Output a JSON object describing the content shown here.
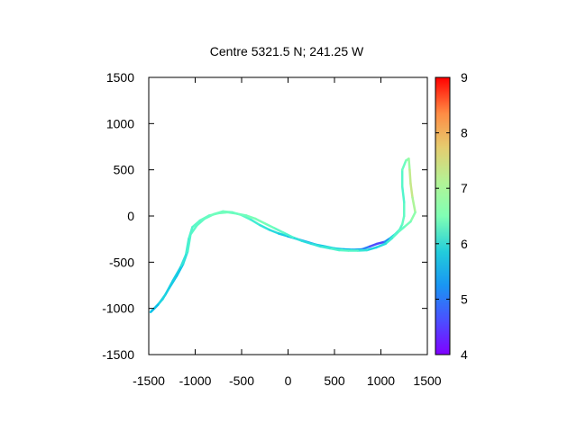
{
  "chart_data": {
    "type": "line",
    "title": "Centre 5321.5 N; 241.25  W",
    "xlabel": "",
    "ylabel": "",
    "xlim": [
      -1500,
      1500
    ],
    "ylim": [
      -1500,
      1500
    ],
    "x_ticks": [
      -1500,
      -1000,
      -500,
      0,
      500,
      1000,
      1500
    ],
    "y_ticks": [
      -1500,
      -1000,
      -500,
      0,
      500,
      1000,
      1500
    ],
    "x_tick_labels": [
      "-1500",
      "-1000",
      "-500",
      "0",
      "500",
      "1000",
      "1500"
    ],
    "y_tick_labels": [
      "-1500",
      "-1000",
      "-500",
      "0",
      "500",
      "1000",
      "1500"
    ],
    "grid": false,
    "colorbar": {
      "range": [
        4,
        9
      ],
      "ticks": [
        4,
        5,
        6,
        7,
        8,
        9
      ],
      "tick_labels": [
        "4",
        "5",
        "6",
        "7",
        "8",
        "9"
      ],
      "colormap": "rainbow"
    },
    "series": [
      {
        "points": [
          {
            "x": -1480,
            "y": -1040,
            "c": 5.3
          },
          {
            "x": -1420,
            "y": -980,
            "c": 5.6
          },
          {
            "x": -1350,
            "y": -900,
            "c": 5.8
          },
          {
            "x": -1280,
            "y": -780,
            "c": 5.5
          },
          {
            "x": -1200,
            "y": -650,
            "c": 5.2
          },
          {
            "x": -1130,
            "y": -520,
            "c": 5.4
          },
          {
            "x": -1080,
            "y": -380,
            "c": 5.9
          },
          {
            "x": -1050,
            "y": -200,
            "c": 6.2
          },
          {
            "x": -980,
            "y": -100,
            "c": 6.1
          },
          {
            "x": -900,
            "y": -30,
            "c": 6.3
          },
          {
            "x": -800,
            "y": 20,
            "c": 6.2
          },
          {
            "x": -700,
            "y": 50,
            "c": 6.4
          },
          {
            "x": -600,
            "y": 40,
            "c": 6.3
          },
          {
            "x": -500,
            "y": 10,
            "c": 6.2
          },
          {
            "x": -400,
            "y": -40,
            "c": 6.0
          },
          {
            "x": -300,
            "y": -100,
            "c": 5.8
          },
          {
            "x": -200,
            "y": -150,
            "c": 5.7
          },
          {
            "x": -100,
            "y": -190,
            "c": 5.6
          },
          {
            "x": 0,
            "y": -220,
            "c": 5.4
          },
          {
            "x": 100,
            "y": -250,
            "c": 5.1
          },
          {
            "x": 200,
            "y": -280,
            "c": 4.9
          },
          {
            "x": 300,
            "y": -310,
            "c": 5.2
          },
          {
            "x": 400,
            "y": -330,
            "c": 5.5
          },
          {
            "x": 500,
            "y": -350,
            "c": 5.6
          },
          {
            "x": 600,
            "y": -360,
            "c": 5.4
          },
          {
            "x": 700,
            "y": -365,
            "c": 5.2
          },
          {
            "x": 800,
            "y": -360,
            "c": 5.0
          },
          {
            "x": 880,
            "y": -330,
            "c": 4.7
          },
          {
            "x": 960,
            "y": -300,
            "c": 4.3
          },
          {
            "x": 1040,
            "y": -280,
            "c": 4.6
          },
          {
            "x": 1100,
            "y": -240,
            "c": 5.3
          },
          {
            "x": 1150,
            "y": -200,
            "c": 5.8
          },
          {
            "x": 1200,
            "y": -150,
            "c": 6.0
          },
          {
            "x": 1230,
            "y": -90,
            "c": 6.2
          },
          {
            "x": 1250,
            "y": 0,
            "c": 6.3
          },
          {
            "x": 1250,
            "y": 150,
            "c": 6.1
          },
          {
            "x": 1230,
            "y": 320,
            "c": 6.0
          },
          {
            "x": 1230,
            "y": 500,
            "c": 6.2
          },
          {
            "x": 1270,
            "y": 600,
            "c": 6.4
          },
          {
            "x": 1300,
            "y": 620,
            "c": 6.6
          },
          {
            "x": 1310,
            "y": 500,
            "c": 7.0
          },
          {
            "x": 1320,
            "y": 350,
            "c": 7.3
          },
          {
            "x": 1340,
            "y": 200,
            "c": 7.1
          },
          {
            "x": 1370,
            "y": 40,
            "c": 6.8
          },
          {
            "x": 1320,
            "y": -60,
            "c": 6.5
          },
          {
            "x": 1250,
            "y": -120,
            "c": 6.3
          },
          {
            "x": 1180,
            "y": -180,
            "c": 6.2
          },
          {
            "x": 1120,
            "y": -240,
            "c": 6.0
          },
          {
            "x": 1050,
            "y": -300,
            "c": 5.8
          },
          {
            "x": 950,
            "y": -340,
            "c": 5.5
          },
          {
            "x": 850,
            "y": -370,
            "c": 5.6
          },
          {
            "x": 750,
            "y": -375,
            "c": 6.0
          },
          {
            "x": 650,
            "y": -375,
            "c": 6.2
          },
          {
            "x": 550,
            "y": -370,
            "c": 6.1
          },
          {
            "x": 450,
            "y": -350,
            "c": 5.9
          },
          {
            "x": 350,
            "y": -330,
            "c": 5.8
          },
          {
            "x": 250,
            "y": -300,
            "c": 5.7
          },
          {
            "x": 150,
            "y": -270,
            "c": 5.6
          },
          {
            "x": 50,
            "y": -230,
            "c": 5.9
          },
          {
            "x": -50,
            "y": -180,
            "c": 6.1
          },
          {
            "x": -150,
            "y": -130,
            "c": 6.3
          },
          {
            "x": -250,
            "y": -80,
            "c": 6.4
          },
          {
            "x": -350,
            "y": -30,
            "c": 6.5
          },
          {
            "x": -450,
            "y": 5,
            "c": 6.4
          },
          {
            "x": -550,
            "y": 25,
            "c": 6.3
          },
          {
            "x": -650,
            "y": 40,
            "c": 6.3
          },
          {
            "x": -750,
            "y": 30,
            "c": 6.4
          },
          {
            "x": -850,
            "y": 5,
            "c": 6.3
          },
          {
            "x": -950,
            "y": -50,
            "c": 6.2
          },
          {
            "x": -1030,
            "y": -120,
            "c": 6.1
          },
          {
            "x": -1070,
            "y": -250,
            "c": 6.0
          },
          {
            "x": -1100,
            "y": -420,
            "c": 5.9
          },
          {
            "x": -1160,
            "y": -560,
            "c": 5.6
          },
          {
            "x": -1240,
            "y": -700,
            "c": 5.4
          },
          {
            "x": -1320,
            "y": -850,
            "c": 5.6
          },
          {
            "x": -1400,
            "y": -960,
            "c": 5.5
          },
          {
            "x": -1470,
            "y": -1030,
            "c": 5.2
          }
        ]
      }
    ]
  }
}
